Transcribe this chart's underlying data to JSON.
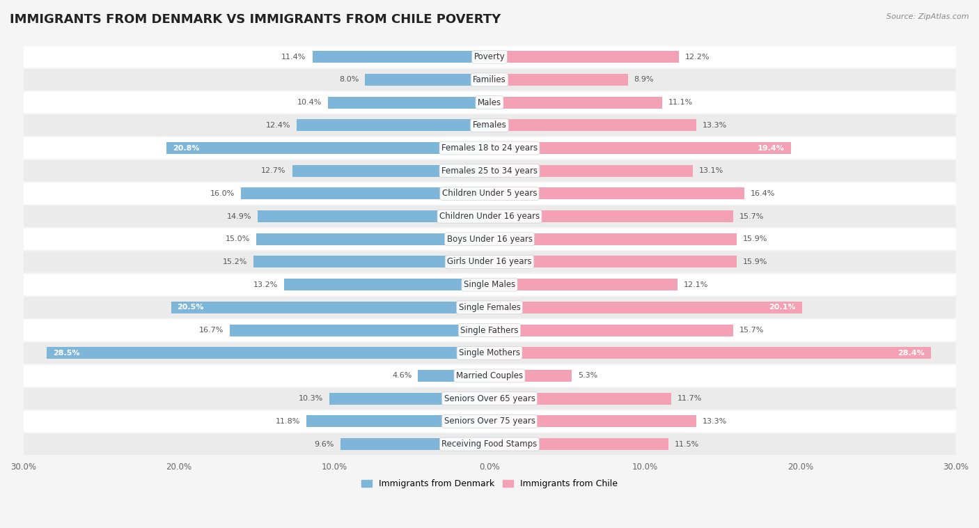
{
  "title": "IMMIGRANTS FROM DENMARK VS IMMIGRANTS FROM CHILE POVERTY",
  "source": "Source: ZipAtlas.com",
  "categories": [
    "Poverty",
    "Families",
    "Males",
    "Females",
    "Females 18 to 24 years",
    "Females 25 to 34 years",
    "Children Under 5 years",
    "Children Under 16 years",
    "Boys Under 16 years",
    "Girls Under 16 years",
    "Single Males",
    "Single Females",
    "Single Fathers",
    "Single Mothers",
    "Married Couples",
    "Seniors Over 65 years",
    "Seniors Over 75 years",
    "Receiving Food Stamps"
  ],
  "denmark_values": [
    11.4,
    8.0,
    10.4,
    12.4,
    20.8,
    12.7,
    16.0,
    14.9,
    15.0,
    15.2,
    13.2,
    20.5,
    16.7,
    28.5,
    4.6,
    10.3,
    11.8,
    9.6
  ],
  "chile_values": [
    12.2,
    8.9,
    11.1,
    13.3,
    19.4,
    13.1,
    16.4,
    15.7,
    15.9,
    15.9,
    12.1,
    20.1,
    15.7,
    28.4,
    5.3,
    11.7,
    13.3,
    11.5
  ],
  "denmark_color": "#7eb6d9",
  "chile_color": "#f4a0b5",
  "denmark_label": "Immigrants from Denmark",
  "chile_label": "Immigrants from Chile",
  "xlim": 30.0,
  "background_color": "#f5f5f5",
  "row_color_odd": "#ffffff",
  "row_color_even": "#ebebeb",
  "title_fontsize": 13,
  "label_fontsize": 8.5,
  "value_fontsize": 8,
  "highlight_threshold": 18.0,
  "xtick_positions": [
    -30,
    -20,
    -10,
    0,
    10,
    20,
    30
  ],
  "xtick_labels": [
    "30.0%",
    "20.0%",
    "10.0%",
    "0.0%",
    "10.0%",
    "20.0%",
    "30.0%"
  ]
}
